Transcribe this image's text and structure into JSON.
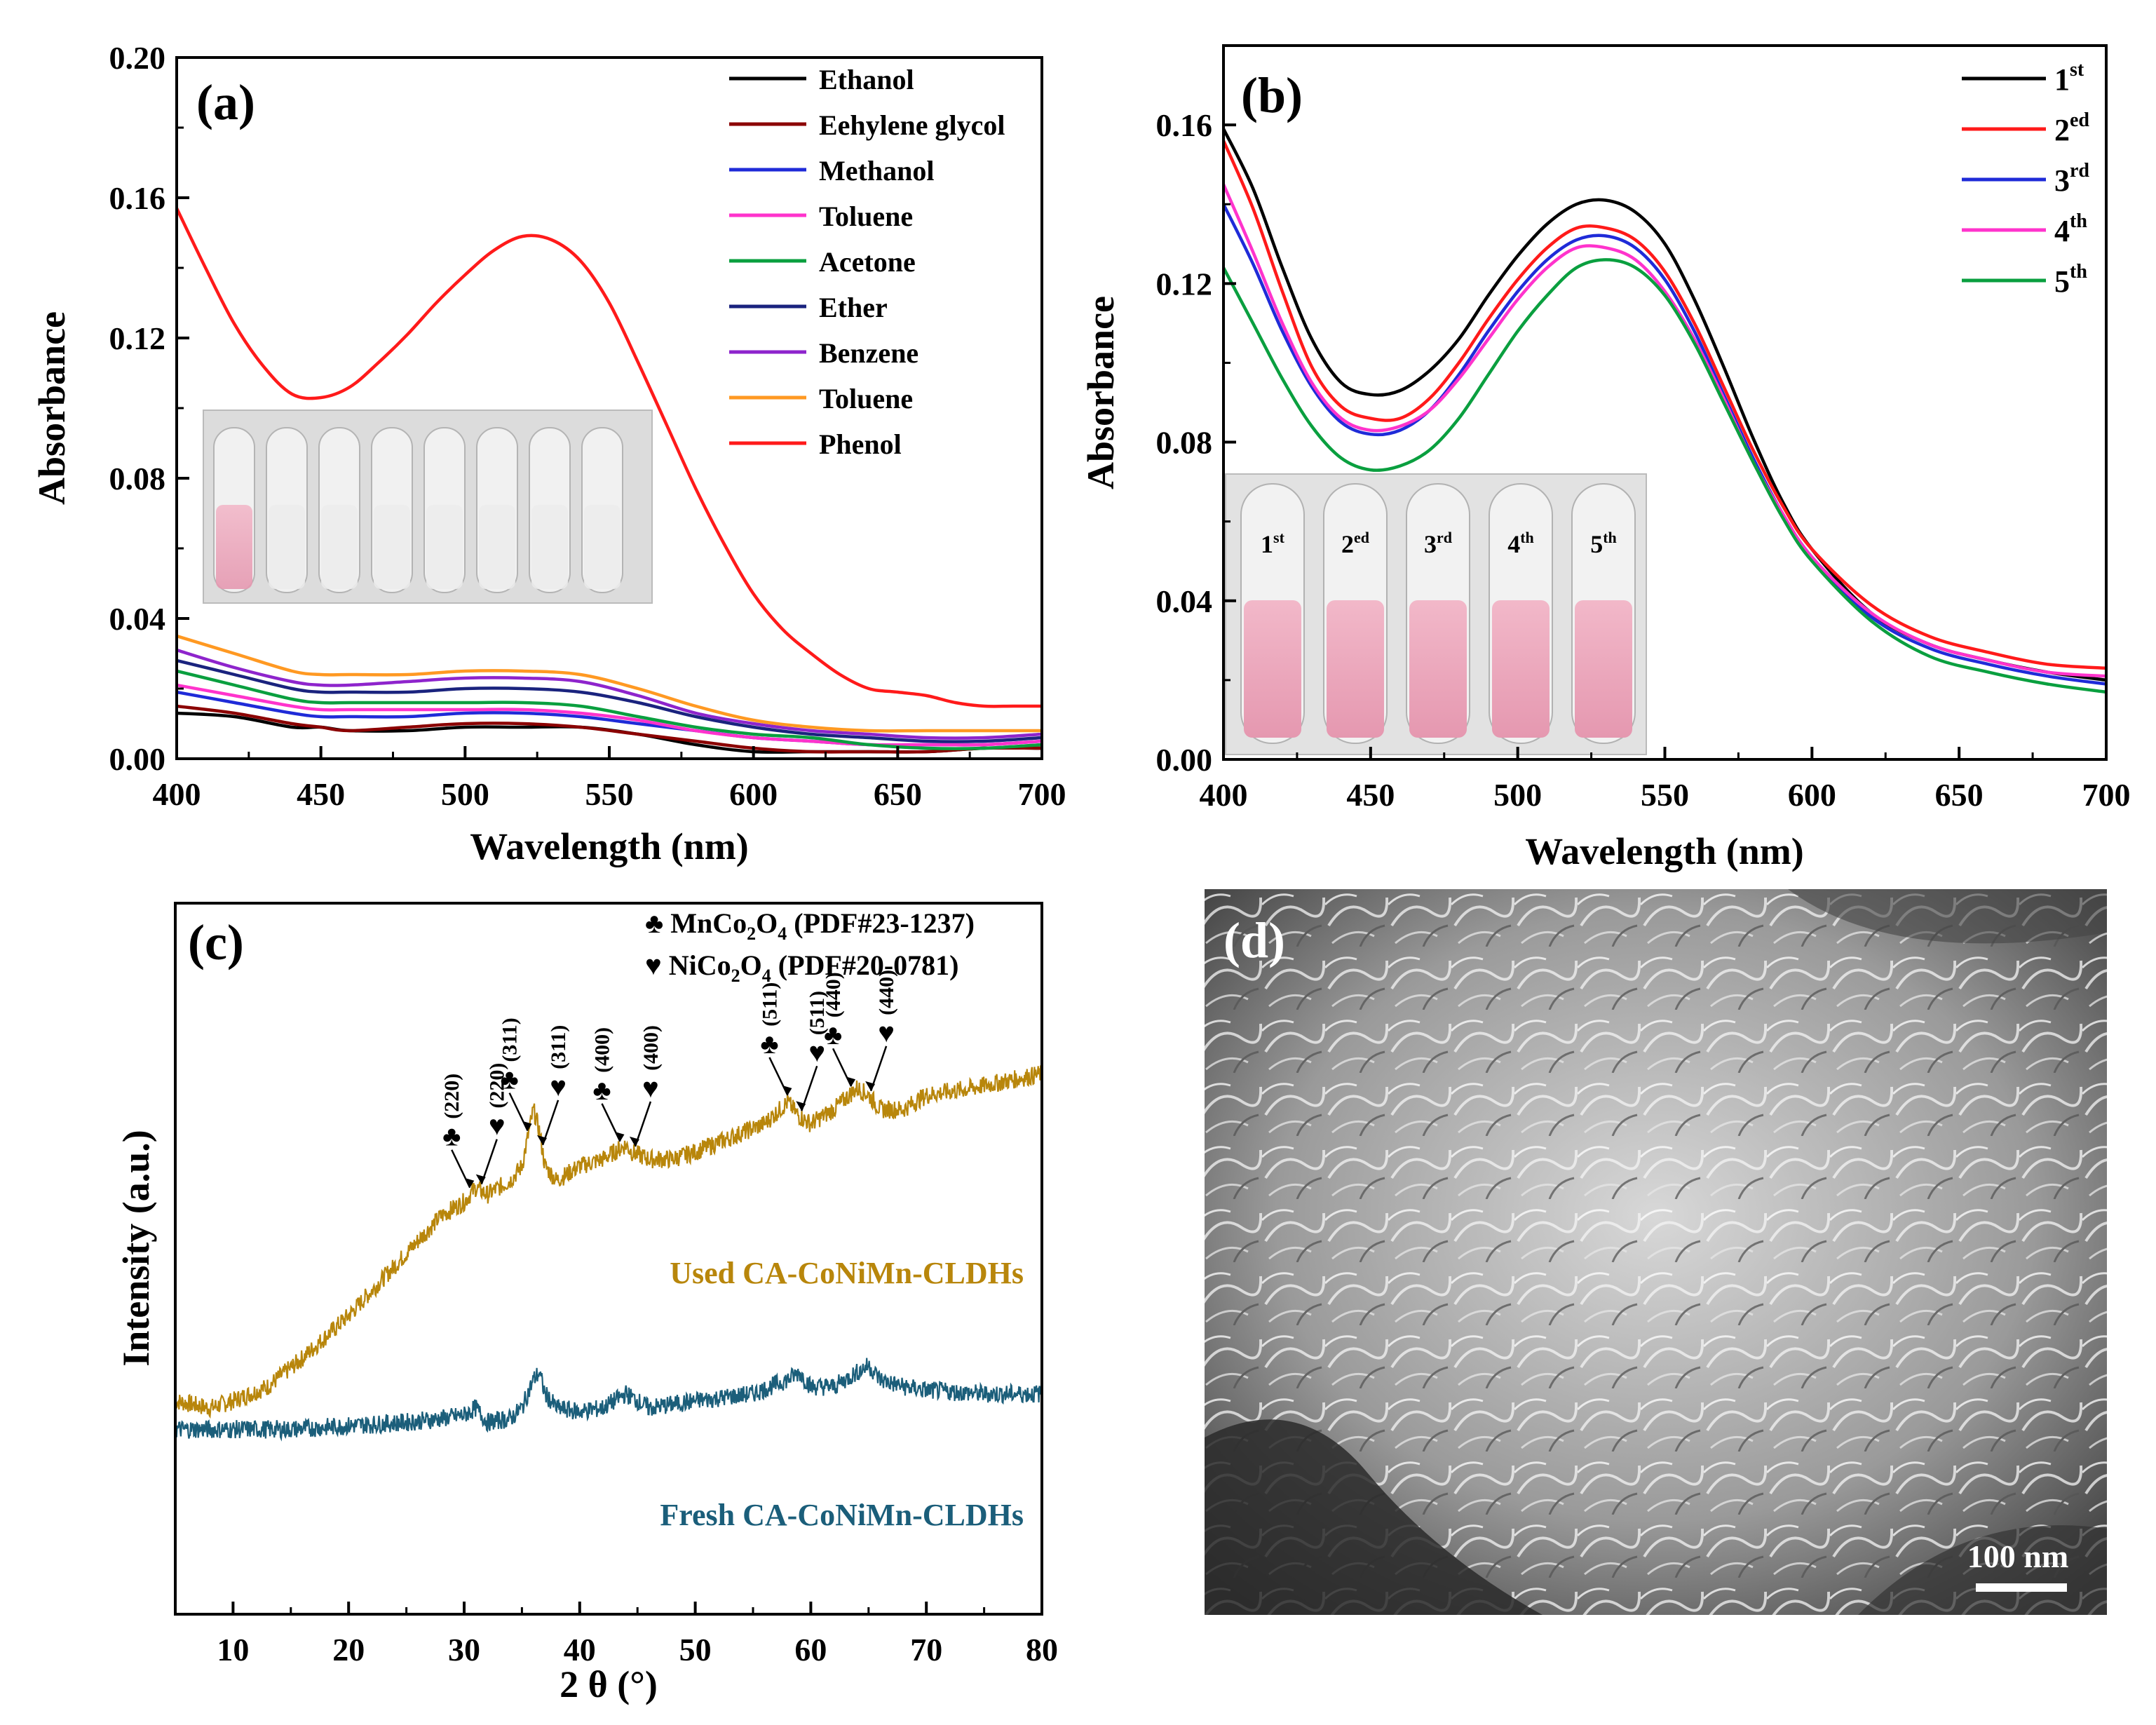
{
  "chart_data": [
    {
      "panel": "(a)",
      "type": "line",
      "xlabel": "Wavelength (nm)",
      "ylabel": "Absorbance",
      "xlim": [
        400,
        700
      ],
      "ylim": [
        0.0,
        0.2
      ],
      "xticks": [
        400,
        450,
        500,
        550,
        600,
        650,
        700
      ],
      "yticks": [
        0.0,
        0.04,
        0.08,
        0.12,
        0.16,
        0.2
      ],
      "ytick_labels": [
        "0.00",
        "0.04",
        "0.08",
        "0.12",
        "0.16",
        "0.20"
      ],
      "legend_position": "top-right",
      "grid": false,
      "inset": "photo of eight vials; first vial pink, others clear",
      "series": [
        {
          "name": "Ethanol",
          "color": "#000000",
          "x": [
            400,
            420,
            440,
            450,
            460,
            480,
            500,
            520,
            540,
            560,
            580,
            600,
            620,
            640,
            660,
            680,
            700
          ],
          "y": [
            0.013,
            0.012,
            0.009,
            0.009,
            0.008,
            0.008,
            0.009,
            0.009,
            0.009,
            0.007,
            0.004,
            0.002,
            0.002,
            0.002,
            0.002,
            0.003,
            0.003
          ]
        },
        {
          "name": "Eehylene glycol",
          "color": "#8b0000",
          "x": [
            400,
            420,
            440,
            450,
            460,
            480,
            500,
            520,
            540,
            560,
            580,
            600,
            620,
            640,
            660,
            680,
            700
          ],
          "y": [
            0.015,
            0.013,
            0.01,
            0.009,
            0.008,
            0.009,
            0.01,
            0.01,
            0.009,
            0.007,
            0.005,
            0.003,
            0.002,
            0.002,
            0.002,
            0.003,
            0.003
          ]
        },
        {
          "name": "Methanol",
          "color": "#1f2bd8",
          "x": [
            400,
            420,
            440,
            450,
            460,
            480,
            500,
            520,
            540,
            560,
            580,
            600,
            620,
            640,
            660,
            680,
            700
          ],
          "y": [
            0.019,
            0.016,
            0.013,
            0.012,
            0.012,
            0.012,
            0.013,
            0.013,
            0.012,
            0.01,
            0.008,
            0.006,
            0.005,
            0.004,
            0.004,
            0.004,
            0.005
          ]
        },
        {
          "name": "Toluene",
          "color": "#ff33cc",
          "x": [
            400,
            420,
            440,
            450,
            460,
            480,
            500,
            520,
            540,
            560,
            580,
            600,
            620,
            640,
            660,
            680,
            700
          ],
          "y": [
            0.021,
            0.018,
            0.015,
            0.014,
            0.014,
            0.014,
            0.014,
            0.014,
            0.013,
            0.011,
            0.008,
            0.006,
            0.005,
            0.004,
            0.004,
            0.004,
            0.005
          ]
        },
        {
          "name": "Acetone",
          "color": "#0a9f3f",
          "x": [
            400,
            420,
            440,
            450,
            460,
            480,
            500,
            520,
            540,
            560,
            580,
            600,
            620,
            640,
            660,
            680,
            700
          ],
          "y": [
            0.025,
            0.021,
            0.017,
            0.016,
            0.016,
            0.016,
            0.016,
            0.016,
            0.015,
            0.012,
            0.009,
            0.007,
            0.006,
            0.004,
            0.003,
            0.003,
            0.004
          ]
        },
        {
          "name": "Ether",
          "color": "#1a237e",
          "x": [
            400,
            420,
            440,
            450,
            460,
            480,
            500,
            520,
            540,
            560,
            580,
            600,
            620,
            640,
            660,
            680,
            700
          ],
          "y": [
            0.028,
            0.024,
            0.02,
            0.019,
            0.019,
            0.019,
            0.02,
            0.02,
            0.019,
            0.016,
            0.012,
            0.009,
            0.007,
            0.006,
            0.005,
            0.005,
            0.006
          ]
        },
        {
          "name": "Benzene",
          "color": "#8e24cc",
          "x": [
            400,
            420,
            440,
            450,
            460,
            480,
            500,
            520,
            540,
            560,
            580,
            600,
            620,
            640,
            660,
            680,
            700
          ],
          "y": [
            0.031,
            0.026,
            0.022,
            0.021,
            0.021,
            0.022,
            0.023,
            0.023,
            0.022,
            0.018,
            0.013,
            0.01,
            0.008,
            0.007,
            0.006,
            0.006,
            0.007
          ]
        },
        {
          "name": "Toluene",
          "color": "#ff9922",
          "x": [
            400,
            420,
            440,
            450,
            460,
            480,
            500,
            520,
            540,
            560,
            580,
            600,
            620,
            640,
            660,
            680,
            700
          ],
          "y": [
            0.035,
            0.03,
            0.025,
            0.024,
            0.024,
            0.024,
            0.025,
            0.025,
            0.024,
            0.02,
            0.015,
            0.011,
            0.009,
            0.008,
            0.008,
            0.008,
            0.008
          ]
        },
        {
          "name": "Phenol",
          "color": "#ff1a1a",
          "x": [
            400,
            410,
            420,
            430,
            440,
            450,
            460,
            470,
            480,
            490,
            500,
            510,
            520,
            530,
            540,
            550,
            560,
            570,
            580,
            590,
            600,
            610,
            620,
            630,
            640,
            650,
            660,
            670,
            680,
            690,
            700
          ],
          "y": [
            0.157,
            0.14,
            0.124,
            0.112,
            0.104,
            0.103,
            0.106,
            0.113,
            0.121,
            0.13,
            0.138,
            0.145,
            0.149,
            0.148,
            0.142,
            0.13,
            0.113,
            0.095,
            0.077,
            0.061,
            0.047,
            0.037,
            0.03,
            0.024,
            0.02,
            0.019,
            0.018,
            0.016,
            0.015,
            0.015,
            0.015
          ]
        }
      ]
    },
    {
      "panel": "(b)",
      "type": "line",
      "xlabel": "Wavelength (nm)",
      "ylabel": "Absorbance",
      "xlim": [
        400,
        700
      ],
      "ylim": [
        0.0,
        0.18
      ],
      "xticks": [
        400,
        450,
        500,
        550,
        600,
        650,
        700
      ],
      "yticks": [
        0.0,
        0.04,
        0.08,
        0.12,
        0.16
      ],
      "ytick_labels": [
        "0.00",
        "0.04",
        "0.08",
        "0.12",
        "0.16"
      ],
      "legend_position": "top-right",
      "grid": false,
      "inset": "photo of five pink vials labeled 1st to 5th",
      "inset_labels": [
        {
          "base": "1",
          "sup": "st"
        },
        {
          "base": "2",
          "sup": "ed"
        },
        {
          "base": "3",
          "sup": "rd"
        },
        {
          "base": "4",
          "sup": "th"
        },
        {
          "base": "5",
          "sup": "th"
        }
      ],
      "series": [
        {
          "name": "1",
          "sup": "st",
          "color": "#000000",
          "x": [
            400,
            410,
            420,
            430,
            440,
            450,
            460,
            470,
            480,
            490,
            500,
            510,
            520,
            530,
            540,
            550,
            560,
            570,
            580,
            590,
            600,
            620,
            640,
            660,
            680,
            700
          ],
          "y": [
            0.159,
            0.144,
            0.124,
            0.106,
            0.095,
            0.092,
            0.093,
            0.098,
            0.106,
            0.117,
            0.127,
            0.135,
            0.14,
            0.141,
            0.138,
            0.13,
            0.116,
            0.099,
            0.081,
            0.065,
            0.053,
            0.037,
            0.029,
            0.025,
            0.022,
            0.02
          ]
        },
        {
          "name": "2",
          "sup": "ed",
          "color": "#ff1a1a",
          "x": [
            400,
            410,
            420,
            430,
            440,
            450,
            460,
            470,
            480,
            490,
            500,
            510,
            520,
            530,
            540,
            550,
            560,
            570,
            580,
            590,
            600,
            620,
            640,
            660,
            680,
            700
          ],
          "y": [
            0.156,
            0.139,
            0.118,
            0.099,
            0.089,
            0.086,
            0.086,
            0.091,
            0.1,
            0.111,
            0.121,
            0.129,
            0.134,
            0.134,
            0.131,
            0.123,
            0.11,
            0.094,
            0.078,
            0.064,
            0.053,
            0.039,
            0.031,
            0.027,
            0.024,
            0.023
          ]
        },
        {
          "name": "3",
          "sup": "rd",
          "color": "#1f2bd8",
          "x": [
            400,
            410,
            420,
            430,
            440,
            450,
            460,
            470,
            480,
            490,
            500,
            510,
            520,
            530,
            540,
            550,
            560,
            570,
            580,
            590,
            600,
            620,
            640,
            660,
            680,
            700
          ],
          "y": [
            0.14,
            0.125,
            0.108,
            0.094,
            0.085,
            0.082,
            0.083,
            0.088,
            0.097,
            0.108,
            0.118,
            0.126,
            0.131,
            0.132,
            0.129,
            0.121,
            0.108,
            0.092,
            0.076,
            0.062,
            0.051,
            0.036,
            0.028,
            0.024,
            0.021,
            0.019
          ]
        },
        {
          "name": "4",
          "sup": "th",
          "color": "#ff33cc",
          "x": [
            400,
            410,
            420,
            430,
            440,
            450,
            460,
            470,
            480,
            490,
            500,
            510,
            520,
            530,
            540,
            550,
            560,
            570,
            580,
            590,
            600,
            620,
            640,
            660,
            680,
            700
          ],
          "y": [
            0.145,
            0.128,
            0.11,
            0.095,
            0.086,
            0.083,
            0.084,
            0.088,
            0.096,
            0.106,
            0.116,
            0.124,
            0.129,
            0.129,
            0.126,
            0.118,
            0.106,
            0.091,
            0.075,
            0.062,
            0.051,
            0.037,
            0.029,
            0.025,
            0.022,
            0.021
          ]
        },
        {
          "name": "5",
          "sup": "th",
          "color": "#0a9f3f",
          "x": [
            400,
            410,
            420,
            430,
            440,
            450,
            460,
            470,
            480,
            490,
            500,
            510,
            520,
            530,
            540,
            550,
            560,
            570,
            580,
            590,
            600,
            620,
            640,
            660,
            680,
            700
          ],
          "y": [
            0.124,
            0.11,
            0.096,
            0.084,
            0.076,
            0.073,
            0.074,
            0.078,
            0.086,
            0.097,
            0.108,
            0.117,
            0.124,
            0.126,
            0.124,
            0.117,
            0.105,
            0.09,
            0.075,
            0.061,
            0.05,
            0.035,
            0.026,
            0.022,
            0.019,
            0.017
          ]
        }
      ]
    },
    {
      "panel": "(c)",
      "type": "line",
      "xlabel": "2 θ (°)",
      "ylabel": "Intensity (a.u.)",
      "xlim": [
        5,
        80
      ],
      "ylim": [
        0,
        100
      ],
      "xticks": [
        10,
        20,
        30,
        40,
        50,
        60,
        70,
        80
      ],
      "yticks": [],
      "grid": false,
      "legend": [
        {
          "symbol": "♣",
          "label": "MnCo",
          "sub1": "2",
          "mid": "O",
          "sub2": "4",
          "tail": " (PDF#23-1237)"
        },
        {
          "symbol": "♥",
          "label": "NiCo",
          "sub1": "2",
          "mid": "O",
          "sub2": "4",
          "tail": " (PDF#20-0781)"
        }
      ],
      "series": [
        {
          "name": "Used CA-CoNiMn-CLDHs",
          "color": "#b8860b",
          "x": [
            5,
            8,
            10,
            13,
            16,
            20,
            24,
            28,
            30,
            31,
            32,
            34,
            35,
            36,
            36.5,
            37,
            38,
            40,
            42,
            44,
            44.5,
            46,
            48,
            50,
            53,
            56,
            58,
            59,
            60,
            62,
            64,
            65,
            66,
            68,
            70,
            74,
            77,
            80
          ],
          "y": [
            30,
            29,
            30,
            32,
            36,
            42,
            49,
            56,
            58,
            60,
            59,
            61,
            63,
            71,
            68,
            63,
            61,
            63,
            64,
            66,
            65,
            64,
            64,
            65,
            67,
            69,
            72,
            70,
            69,
            71,
            74,
            73,
            71,
            71,
            73,
            74,
            75,
            76
          ]
        },
        {
          "name": "Fresh CA-CoNiMn-CLDHs",
          "color": "#1b5e7a",
          "x": [
            5,
            10,
            15,
            20,
            25,
            28,
            30,
            31,
            32,
            34,
            35,
            36,
            36.5,
            37,
            38,
            40,
            42,
            44,
            45,
            46,
            50,
            55,
            58,
            59,
            60,
            62,
            64,
            65,
            66,
            68,
            70,
            75,
            80
          ],
          "y": [
            26,
            26,
            26,
            26.5,
            27,
            27.5,
            28,
            29,
            27,
            27.5,
            29,
            33,
            34,
            31,
            29,
            28.5,
            29,
            31,
            30,
            29,
            30,
            31,
            33,
            34,
            32,
            32,
            34,
            35,
            33,
            32,
            31.5,
            31,
            31
          ]
        }
      ],
      "annotations": [
        {
          "symbol": "♣",
          "text": "(220)",
          "x": 30.5
        },
        {
          "symbol": "♥",
          "text": "(220)",
          "x": 31.5
        },
        {
          "symbol": "♣",
          "text": "(311)",
          "x": 35.5
        },
        {
          "symbol": "♥",
          "text": "(311)",
          "x": 36.8
        },
        {
          "symbol": "♣",
          "text": "(400)",
          "x": 43.5
        },
        {
          "symbol": "♥",
          "text": "(400)",
          "x": 44.8
        },
        {
          "symbol": "♣",
          "text": "(511)",
          "x": 58
        },
        {
          "symbol": "♥",
          "text": "(511)",
          "x": 59.2
        },
        {
          "symbol": "♣",
          "text": "(440)",
          "x": 63.5
        },
        {
          "symbol": "♥",
          "text": "(440)",
          "x": 65.2
        }
      ]
    }
  ],
  "sem": {
    "panel": "(d)",
    "scalebar": "100 nm"
  }
}
